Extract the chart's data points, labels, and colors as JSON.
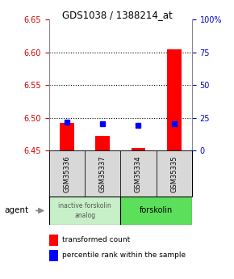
{
  "title": "GDS1038 / 1388214_at",
  "samples": [
    "GSM35336",
    "GSM35337",
    "GSM35334",
    "GSM35335"
  ],
  "red_values": [
    6.492,
    6.473,
    6.454,
    6.604
  ],
  "blue_values": [
    6.493,
    6.491,
    6.489,
    6.491
  ],
  "ylim_left": [
    6.45,
    6.65
  ],
  "ylim_right": [
    0,
    100
  ],
  "yticks_left": [
    6.45,
    6.5,
    6.55,
    6.6,
    6.65
  ],
  "yticks_right": [
    0,
    25,
    50,
    75,
    100
  ],
  "ytick_labels_right": [
    "0",
    "25",
    "50",
    "75",
    "100%"
  ],
  "group1_label": "inactive forskolin\nanalog",
  "group1_color": "#c8f0c8",
  "group2_label": "forskolin",
  "group2_color": "#5ce05c",
  "bar_width": 0.4,
  "blue_marker_size": 5,
  "left_tick_color": "#cc0000",
  "right_tick_color": "#0000cc",
  "legend_red_label": "transformed count",
  "legend_blue_label": "percentile rank within the sample",
  "agent_label": "agent"
}
